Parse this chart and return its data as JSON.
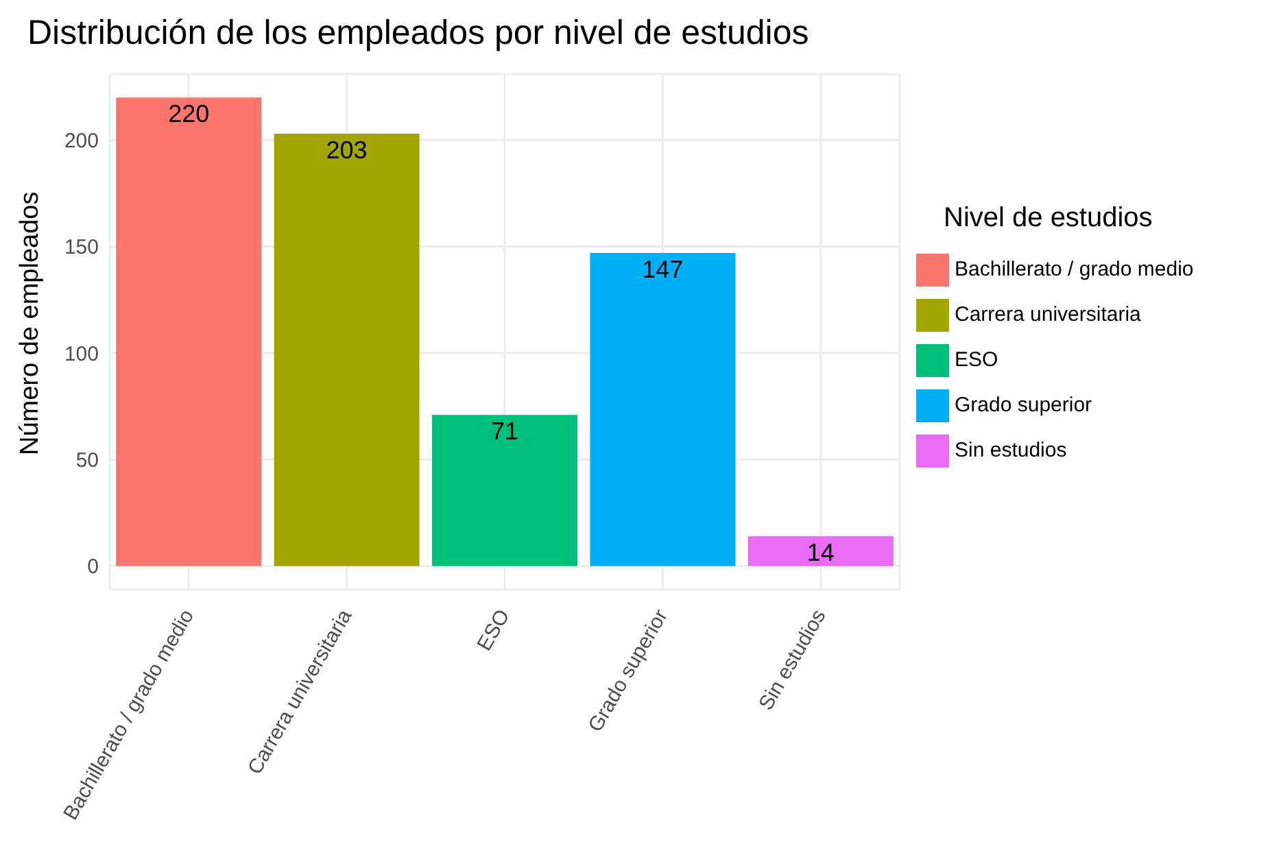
{
  "chart_data": {
    "type": "bar",
    "title": "Distribución de los empleados por nivel de estudios",
    "ylabel": "Número de empleados",
    "legend_title": "Nivel de estudios",
    "categories": [
      "Bachillerato / grado medio",
      "Carrera universitaria",
      "ESO",
      "Grado superior",
      "Sin estudios"
    ],
    "series": [
      {
        "name": "Bachillerato / grado medio",
        "color": "#f8766d",
        "values": [
          220,
          null,
          null,
          null,
          null
        ]
      },
      {
        "name": "Carrera universitaria",
        "color": "#a3a500",
        "values": [
          null,
          203,
          null,
          null,
          null
        ]
      },
      {
        "name": "ESO",
        "color": "#00bf7d",
        "values": [
          null,
          null,
          71,
          null,
          null
        ]
      },
      {
        "name": "Grado superior",
        "color": "#00b0f6",
        "values": [
          null,
          null,
          null,
          147,
          null
        ]
      },
      {
        "name": "Sin estudios",
        "color": "#e76bf3",
        "values": [
          null,
          null,
          null,
          null,
          14
        ]
      }
    ],
    "stacked": true,
    "ylim": [
      -11,
      231
    ],
    "yticks": [
      0,
      50,
      100,
      150,
      200
    ],
    "grid": true,
    "legend": "right",
    "data_labels": true
  }
}
